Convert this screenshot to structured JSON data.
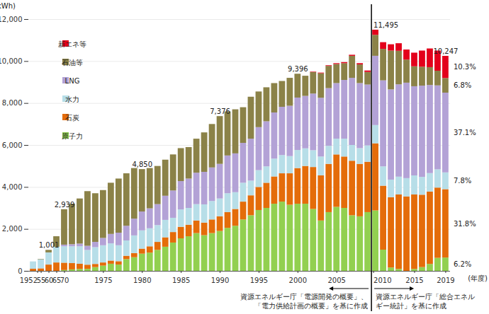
{
  "chart_data": {
    "type": "bar",
    "stacked": true,
    "y_label": "(億kWh)",
    "x_label": "(年度)",
    "categories": [
      "1952",
      "55",
      "60",
      "65",
      "70",
      null,
      null,
      null,
      null,
      "1975",
      null,
      null,
      null,
      null,
      "1980",
      null,
      null,
      null,
      null,
      "1985",
      null,
      null,
      null,
      null,
      "1990",
      null,
      null,
      null,
      null,
      "1995",
      null,
      null,
      null,
      null,
      "2000",
      null,
      null,
      null,
      null,
      "2005",
      null,
      null,
      null,
      null,
      "2010",
      null,
      null,
      null,
      null,
      "2015",
      null,
      null,
      null,
      "2019"
    ],
    "series": [
      {
        "name": "原子力",
        "color": "#92d050",
        "values": [
          0,
          0,
          0,
          0,
          40,
          70,
          90,
          95,
          180,
          250,
          340,
          300,
          560,
          650,
          820,
          870,
          1000,
          1150,
          1350,
          1550,
          1650,
          1800,
          1700,
          1800,
          1900,
          2050,
          2150,
          2450,
          2650,
          2900,
          3000,
          3200,
          3300,
          3150,
          3200,
          3200,
          2950,
          2400,
          2800,
          3050,
          3000,
          2650,
          2600,
          2800,
          2880,
          1010,
          160,
          90,
          0,
          90,
          180,
          330,
          620,
          635
        ]
      },
      {
        "name": "石炭",
        "color": "#e46c0a",
        "values": [
          100,
          120,
          300,
          400,
          350,
          300,
          250,
          200,
          150,
          150,
          150,
          160,
          160,
          200,
          240,
          300,
          380,
          450,
          500,
          550,
          550,
          600,
          600,
          650,
          700,
          750,
          800,
          850,
          950,
          1100,
          1200,
          1300,
          1350,
          1500,
          1700,
          1800,
          2000,
          2150,
          2300,
          2500,
          2450,
          2600,
          2500,
          2400,
          3200,
          3050,
          3350,
          3550,
          3550,
          3550,
          3450,
          3450,
          3350,
          3259
        ]
      },
      {
        "name": "水力",
        "color": "#b7dee8",
        "values": [
          350,
          430,
          580,
          750,
          780,
          800,
          830,
          700,
          800,
          820,
          820,
          760,
          730,
          840,
          870,
          860,
          800,
          830,
          680,
          830,
          800,
          780,
          870,
          880,
          850,
          900,
          800,
          900,
          700,
          800,
          780,
          850,
          870,
          820,
          860,
          840,
          800,
          900,
          860,
          750,
          850,
          750,
          750,
          780,
          870,
          920,
          840,
          850,
          870,
          910,
          850,
          880,
          870,
          799
        ]
      },
      {
        "name": "LNG",
        "color": "#b3a2d6",
        "values": [
          0,
          0,
          0,
          0,
          80,
          100,
          130,
          200,
          250,
          350,
          450,
          600,
          700,
          800,
          900,
          950,
          1000,
          1150,
          1300,
          1350,
          1400,
          1500,
          1550,
          1600,
          1650,
          1800,
          1850,
          1900,
          2000,
          2050,
          2150,
          2200,
          2300,
          2400,
          2500,
          2500,
          2700,
          2800,
          2750,
          2650,
          2800,
          3200,
          3100,
          2900,
          3300,
          4100,
          4300,
          4400,
          4550,
          4250,
          4350,
          4200,
          4000,
          3802
        ]
      },
      {
        "name": "石油等",
        "color": "#8b8248",
        "values": [
          0,
          20,
          121,
          500,
          1689,
          1930,
          2150,
          2605,
          2320,
          2280,
          2440,
          2580,
          2500,
          2410,
          2020,
          1920,
          1820,
          1720,
          1720,
          1570,
          1500,
          1620,
          1880,
          2070,
          2276,
          2100,
          2100,
          1700,
          2000,
          1700,
          1620,
          1400,
          1230,
          1330,
          1136,
          960,
          1030,
          1170,
          1060,
          910,
          800,
          1050,
          890,
          600,
          1000,
          1500,
          1850,
          1600,
          1100,
          950,
          900,
          850,
          700,
          697
        ]
      },
      {
        "name": "新エネ等",
        "color": "#e3001b",
        "values": [
          0,
          0,
          0,
          0,
          0,
          0,
          0,
          0,
          0,
          0,
          0,
          0,
          0,
          0,
          0,
          0,
          0,
          0,
          0,
          0,
          0,
          0,
          0,
          0,
          0,
          0,
          0,
          0,
          0,
          0,
          0,
          0,
          0,
          0,
          0,
          0,
          20,
          30,
          30,
          40,
          50,
          50,
          60,
          70,
          245,
          320,
          300,
          360,
          480,
          650,
          770,
          890,
          960,
          1055
        ]
      }
    ],
    "ylim": [
      0,
      12000
    ],
    "yticks": [
      0,
      {
        "value": 2000,
        "label": "2,000"
      },
      {
        "value": 4000,
        "label": "4,000"
      },
      {
        "value": 6000,
        "label": "6,000"
      },
      {
        "value": 8000,
        "label": "8,000"
      },
      {
        "value": 10000,
        "label": "10,000"
      },
      {
        "value": 12000,
        "label": "12,000"
      }
    ],
    "grid": true,
    "legend": "top-left",
    "total_labels": [
      null,
      null,
      "1,001",
      null,
      "2,939",
      null,
      null,
      null,
      null,
      null,
      null,
      null,
      null,
      null,
      "4,850",
      null,
      null,
      null,
      null,
      null,
      null,
      null,
      null,
      null,
      "7,376",
      null,
      null,
      null,
      null,
      null,
      null,
      null,
      null,
      null,
      "9,396",
      null,
      null,
      null,
      null,
      null,
      null,
      null,
      null,
      null,
      "11,495",
      null,
      null,
      null,
      null,
      null,
      null,
      null,
      null,
      "10,247"
    ],
    "annotations": [
      {
        "text": "10.3%",
        "series": "新エネ等"
      },
      {
        "text": "6.8%",
        "series": "石油等"
      },
      {
        "text": "37.1%",
        "series": "LNG"
      },
      {
        "text": "7.8%",
        "series": "水力"
      },
      {
        "text": "31.8%",
        "series": "石炭"
      },
      {
        "text": "6.2%",
        "series": "原子力"
      }
    ],
    "divider_before": "2010",
    "source_notes": [
      {
        "side": "before",
        "lines": [
          "資源エネルギー庁「電源開発の概要」、",
          "「電力供給計画の概要」を基に作成"
        ]
      },
      {
        "side": "after",
        "lines": [
          "資源エネルギー庁「総合エネル",
          "ギー統計」を基に作成"
        ]
      }
    ]
  }
}
